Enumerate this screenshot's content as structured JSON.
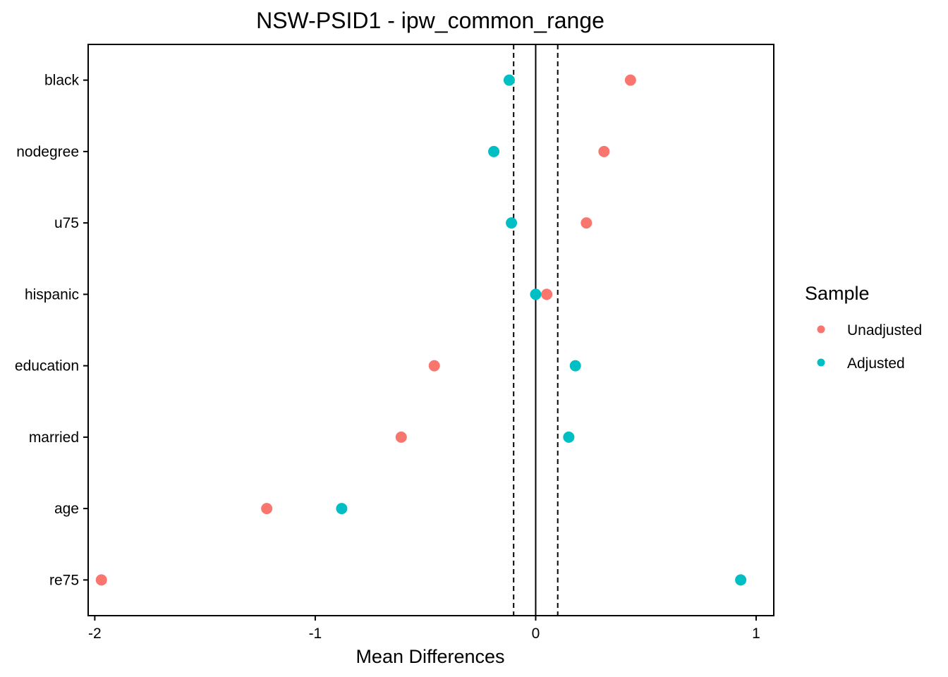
{
  "chart_data": {
    "type": "scatter",
    "title": "NSW-PSID1 - ipw_common_range",
    "xlabel": "Mean Differences",
    "ylabel": "",
    "xlim": [
      -2.03,
      1.08
    ],
    "x_ticks": [
      -2,
      -1,
      0,
      1
    ],
    "x_tick_labels": [
      "-2",
      "-1",
      "0",
      "1"
    ],
    "categories": [
      "black",
      "nodegree",
      "u75",
      "hispanic",
      "education",
      "married",
      "age",
      "re75"
    ],
    "reference_lines": {
      "solid": 0,
      "dashed": [
        -0.1,
        0.1
      ]
    },
    "legend_title": "Sample",
    "legend_position": "right",
    "grid": false,
    "series": [
      {
        "name": "Unadjusted",
        "color": "#F8766D",
        "values": [
          0.43,
          0.31,
          0.23,
          0.05,
          -0.46,
          -0.61,
          -1.22,
          -1.97
        ]
      },
      {
        "name": "Adjusted",
        "color": "#00BFC4",
        "values": [
          -0.12,
          -0.19,
          -0.11,
          0.0,
          0.18,
          0.15,
          -0.88,
          0.93
        ]
      }
    ]
  }
}
